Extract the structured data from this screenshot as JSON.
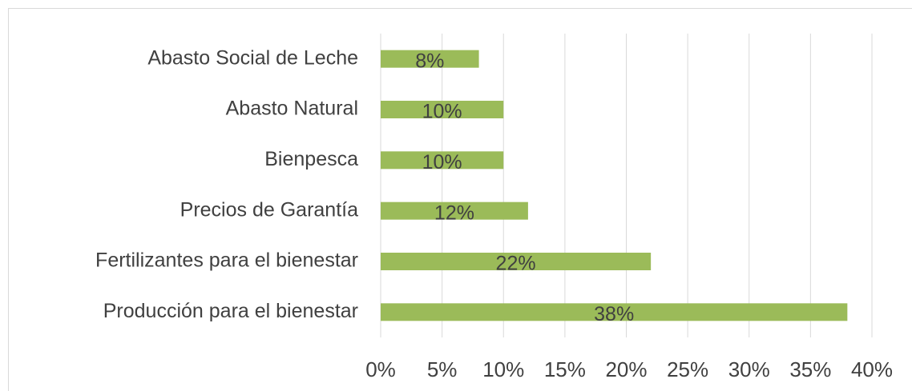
{
  "chart_data": {
    "type": "bar",
    "orientation": "horizontal",
    "categories": [
      "Abasto Social de Leche",
      "Abasto Natural",
      "Bienpesca",
      "Precios de Garantía",
      "Fertilizantes para el bienestar",
      "Producción para el bienestar"
    ],
    "values": [
      8,
      10,
      10,
      12,
      22,
      38
    ],
    "value_labels": [
      "8%",
      "10%",
      "10%",
      "12%",
      "22%",
      "38%"
    ],
    "color": "#9bbb59",
    "xlim": [
      0,
      40
    ],
    "xticks": [
      {
        "value": 0,
        "label": "0%"
      },
      {
        "value": 5,
        "label": "5%"
      },
      {
        "value": 10,
        "label": "10%"
      },
      {
        "value": 15,
        "label": "15%"
      },
      {
        "value": 20,
        "label": "20%"
      },
      {
        "value": 25,
        "label": "25%"
      },
      {
        "value": 30,
        "label": "30%"
      },
      {
        "value": 35,
        "label": "35%"
      },
      {
        "value": 40,
        "label": "40%"
      }
    ],
    "grid": true
  }
}
